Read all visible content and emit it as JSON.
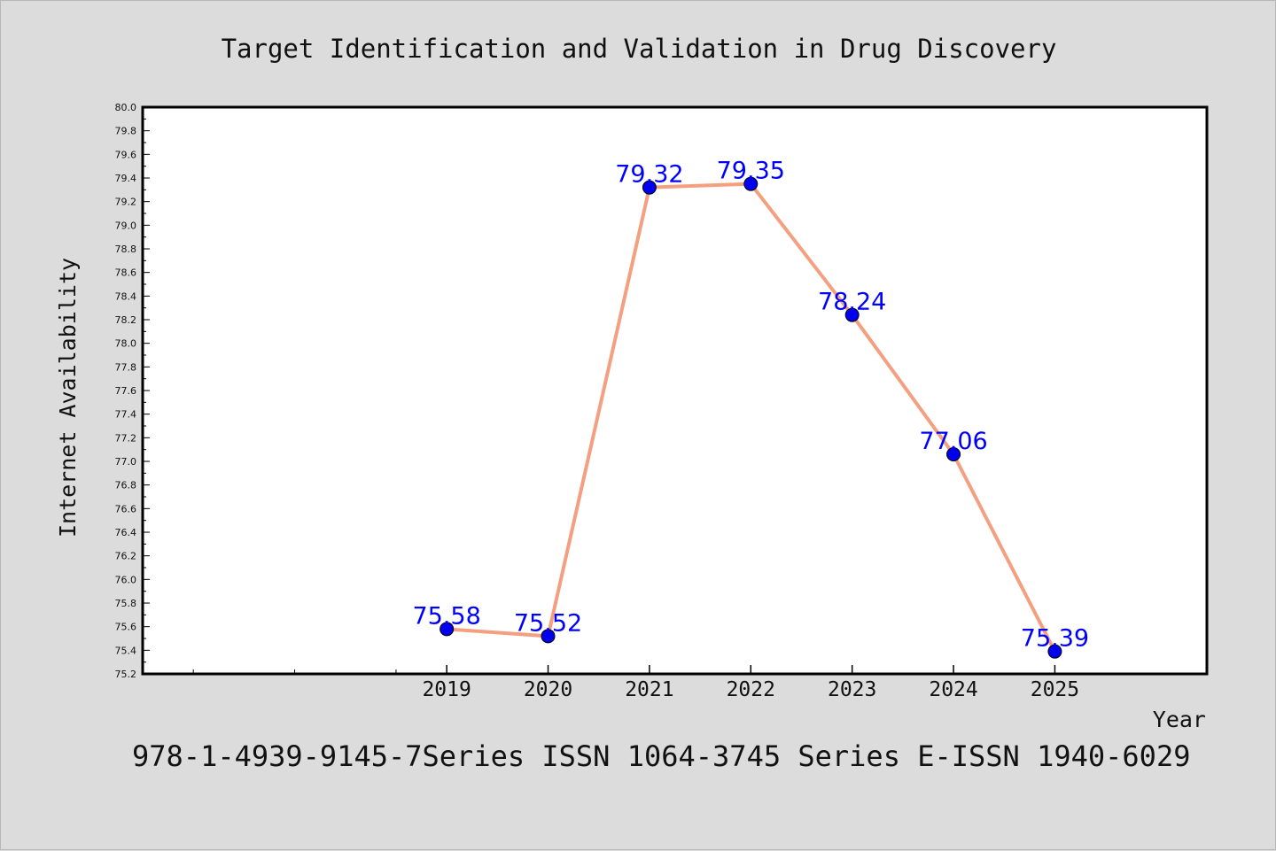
{
  "chart_data": {
    "type": "line",
    "title": "Target Identification and Validation in Drug Discovery",
    "xlabel": "Year",
    "ylabel": "Internet Availability",
    "categories": [
      "2019",
      "2020",
      "2021",
      "2022",
      "2023",
      "2024",
      "2025"
    ],
    "series": [
      {
        "values": [
          75.58,
          75.52,
          79.32,
          79.35,
          78.24,
          77.06,
          75.39
        ]
      }
    ],
    "data_labels": [
      "75.58",
      "75.52",
      "79.32",
      "79.35",
      "78.24",
      "77.06",
      "75.39"
    ],
    "ylim": [
      75.2,
      80.0
    ],
    "xlim": [
      2016,
      2026.5
    ],
    "y_ticks": [
      "75.2",
      "75.4",
      "75.6",
      "75.8",
      "76.0",
      "76.2",
      "76.4",
      "76.6",
      "76.8",
      "77.0",
      "77.2",
      "77.4",
      "77.6",
      "77.8",
      "78.0",
      "78.2",
      "78.4",
      "78.6",
      "78.8",
      "79.0",
      "79.2",
      "79.4",
      "79.6",
      "79.8",
      "80.0"
    ],
    "grid": false,
    "legend": "none",
    "colors": {
      "line": "#f4a080",
      "marker": "#0000ee",
      "label": "#0000ff",
      "background": "#dcdcdc",
      "plot_background": "#ffffff"
    }
  },
  "footer": {
    "text": "978-1-4939-9145-7Series ISSN 1064-3745 Series E-ISSN 1940-6029"
  }
}
